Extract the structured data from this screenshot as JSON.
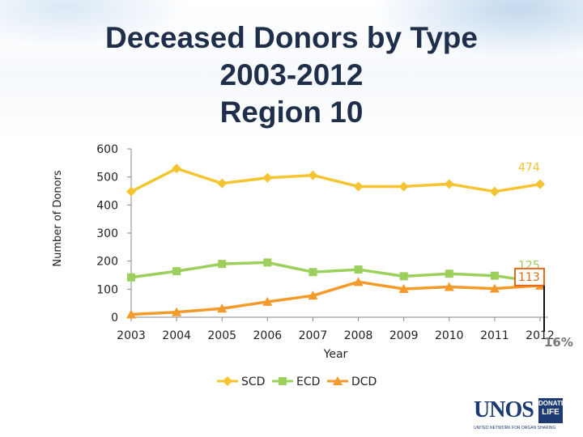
{
  "title": {
    "line1": "Deceased Donors by Type",
    "line2": "2003-2012",
    "line3": "Region 10"
  },
  "chart_data": {
    "type": "line",
    "x": [
      "2003",
      "2004",
      "2005",
      "2006",
      "2007",
      "2008",
      "2009",
      "2010",
      "2011",
      "2012"
    ],
    "xlabel": "Year",
    "ylabel": "Number of Donors",
    "ylim": [
      0,
      600
    ],
    "yticks": [
      "0",
      "100",
      "200",
      "300",
      "400",
      "500",
      "600"
    ],
    "grid": false,
    "legend_position": "bottom",
    "series": [
      {
        "name": "SCD",
        "color": "#f5c431",
        "marker": "diamond",
        "values": [
          448,
          530,
          477,
          497,
          506,
          466,
          466,
          475,
          448,
          474
        ]
      },
      {
        "name": "ECD",
        "color": "#9ccf5b",
        "marker": "square",
        "values": [
          142,
          164,
          190,
          195,
          161,
          170,
          146,
          155,
          148,
          125
        ]
      },
      {
        "name": "DCD",
        "color": "#f39a2b",
        "marker": "triangle",
        "values": [
          10,
          18,
          31,
          55,
          77,
          126,
          101,
          108,
          102,
          113
        ]
      }
    ],
    "data_labels": [
      {
        "series": "SCD",
        "x": "2012",
        "text": "474",
        "color": "#f5c431"
      },
      {
        "series": "ECD",
        "x": "2012",
        "text": "125",
        "color": "#9ccf5b"
      },
      {
        "series": "DCD",
        "x": "2012",
        "text": "113",
        "color": "#e06a1a",
        "boxed": true
      }
    ],
    "annotation": "16%"
  },
  "logo": {
    "main": "UNOS",
    "badge_line1": "DONATE",
    "badge_line2": "LIFE",
    "tagline": "UNITED NETWORK FOR ORGAN SHARING"
  }
}
